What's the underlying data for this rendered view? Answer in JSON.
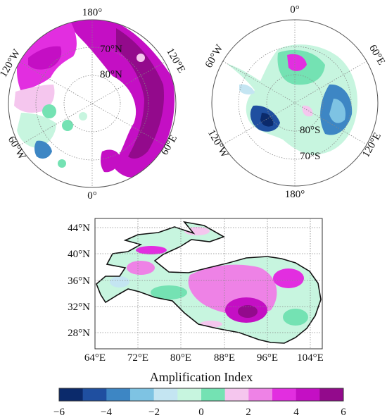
{
  "colors": {
    "scale": [
      "#0b2a6b",
      "#1f4fa0",
      "#3d86c4",
      "#7ec3e3",
      "#c4e5f2",
      "#c7f5df",
      "#74e2b3",
      "#f5c6ee",
      "#ee82e6",
      "#e22ee0",
      "#c40fc4",
      "#930a8c"
    ],
    "land_white": "#ffffff",
    "grid": "#888888",
    "frame": "#555555",
    "outline": "#111111"
  },
  "arctic": {
    "lon_labels": {
      "top": "180°",
      "upper_left": "120°W",
      "upper_right": "120°E",
      "lower_left": "60°W",
      "lower_right": "60°E",
      "bottom": "0°"
    },
    "lat_labels": [
      "70°N",
      "80°N"
    ]
  },
  "antarctic": {
    "lon_labels": {
      "top": "0°",
      "upper_left": "60°W",
      "upper_right": "60°E",
      "lower_left": "120°W",
      "lower_right": "120°E",
      "bottom": "180°"
    },
    "lat_labels": [
      "80°S",
      "70°S"
    ]
  },
  "tibet": {
    "y_labels": [
      "44°N",
      "40°N",
      "36°N",
      "32°N",
      "28°N"
    ],
    "x_labels": [
      "64°E",
      "72°E",
      "80°E",
      "88°E",
      "96°E",
      "104°E"
    ]
  },
  "colorbar": {
    "title": "Amplification Index",
    "min": -6,
    "max": 6,
    "ticks": [
      "−6",
      "−4",
      "−2",
      "0",
      "2",
      "4",
      "6"
    ]
  }
}
